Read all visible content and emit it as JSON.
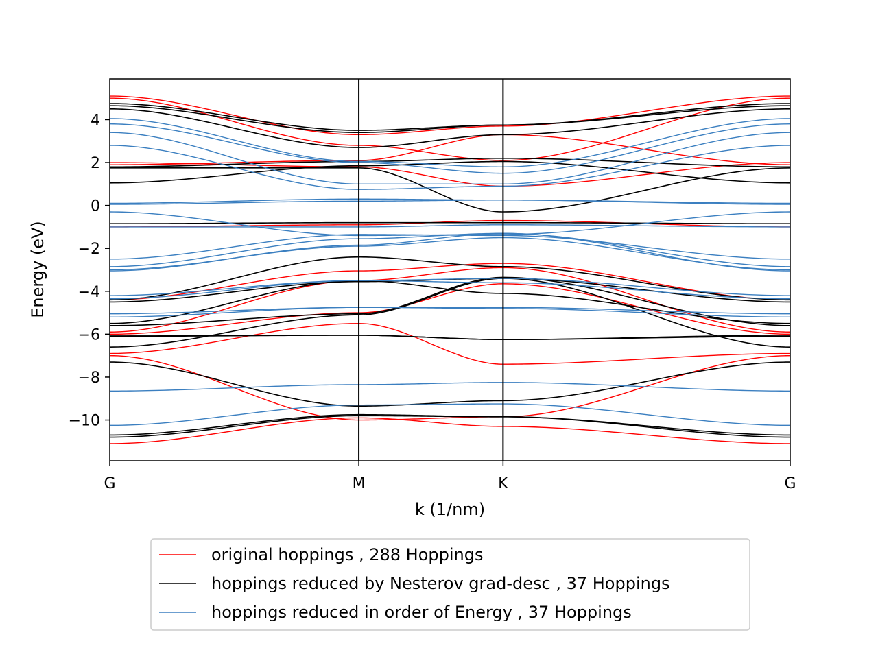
{
  "chart_data": {
    "type": "line",
    "title": "",
    "xlabel": "k (1/nm)",
    "ylabel": "Energy (eV)",
    "xlim": [
      0,
      1
    ],
    "ylim": [
      -11.9,
      5.9
    ],
    "k_ticks": [
      {
        "label": "G",
        "x": 0.0
      },
      {
        "label": "M",
        "x": 0.366
      },
      {
        "label": "K",
        "x": 0.578
      },
      {
        "label": "G",
        "x": 1.0
      }
    ],
    "y_ticks": [
      4,
      2,
      0,
      -2,
      -4,
      -6,
      -8,
      -10
    ],
    "y_tick_labels": [
      "4",
      "2",
      "0",
      "−2",
      "−4",
      "−6",
      "−8",
      "−10"
    ],
    "grid": false,
    "legend_position": "bottom-center, outside plot",
    "series": [
      {
        "name": "original hoppings , 288 Hoppings",
        "color": "#ff0000",
        "bands": [
          [
            5.1,
            3.3,
            3.7,
            5.1
          ],
          [
            5.0,
            2.8,
            2.1,
            5.0
          ],
          [
            2.0,
            1.8,
            0.9,
            2.0
          ],
          [
            1.9,
            2.1,
            3.3,
            1.9
          ],
          [
            -1.0,
            -0.9,
            -0.7,
            -1.0
          ],
          [
            -4.4,
            -3.05,
            -2.7,
            -4.4
          ],
          [
            -5.9,
            -3.5,
            -2.9,
            -5.9
          ],
          [
            -6.0,
            -5.0,
            -3.65,
            -6.0
          ],
          [
            -6.9,
            -5.5,
            -7.4,
            -6.9
          ],
          [
            -7.0,
            -10.0,
            -9.85,
            -7.0
          ],
          [
            -11.1,
            -9.9,
            -10.3,
            -11.1
          ]
        ]
      },
      {
        "name": "hoppings reduced by Nesterov grad-desc , 37 Hoppings",
        "color": "#000000",
        "bands": [
          [
            4.75,
            3.5,
            3.75,
            4.75
          ],
          [
            4.65,
            3.4,
            3.75,
            4.65
          ],
          [
            4.5,
            2.7,
            3.3,
            4.5
          ],
          [
            1.8,
            2.05,
            2.2,
            1.8
          ],
          [
            1.75,
            1.75,
            -0.3,
            1.75
          ],
          [
            1.05,
            1.85,
            2.05,
            1.05
          ],
          [
            -0.85,
            -0.8,
            -0.8,
            -0.85
          ],
          [
            -4.4,
            -2.4,
            -2.85,
            -4.4
          ],
          [
            -4.5,
            -3.55,
            -3.4,
            -4.5
          ],
          [
            -5.5,
            -3.5,
            -4.1,
            -5.5
          ],
          [
            -5.6,
            -5.05,
            -3.35,
            -5.6
          ],
          [
            -6.05,
            -6.05,
            -6.25,
            -6.05
          ],
          [
            -6.1,
            -6.05,
            -6.25,
            -6.1
          ],
          [
            -6.6,
            -5.1,
            -3.4,
            -6.6
          ],
          [
            -7.3,
            -9.35,
            -9.1,
            -7.3
          ],
          [
            -10.7,
            -9.75,
            -9.85,
            -10.7
          ],
          [
            -10.8,
            -9.8,
            -9.85,
            -10.8
          ]
        ]
      },
      {
        "name": "hoppings reduced in order of Energy , 37 Hoppings",
        "color": "#3b7fc0",
        "bands": [
          [
            4.05,
            2.05,
            1.8,
            4.05
          ],
          [
            3.8,
            2.0,
            1.5,
            3.8
          ],
          [
            3.4,
            1.0,
            1.0,
            3.4
          ],
          [
            2.8,
            0.75,
            0.9,
            2.8
          ],
          [
            0.1,
            0.3,
            0.25,
            0.1
          ],
          [
            0.05,
            0.2,
            0.25,
            0.05
          ],
          [
            -0.3,
            -1.4,
            -1.35,
            -0.3
          ],
          [
            -1.0,
            -1.0,
            -0.9,
            -1.0
          ],
          [
            -2.5,
            -1.35,
            -1.4,
            -2.5
          ],
          [
            -2.85,
            -1.55,
            -1.3,
            -2.85
          ],
          [
            -3.0,
            -1.9,
            -1.5,
            -3.0
          ],
          [
            -3.05,
            -1.85,
            -1.3,
            -3.05
          ],
          [
            -4.2,
            -3.5,
            -3.4,
            -4.2
          ],
          [
            -4.35,
            -3.5,
            -3.6,
            -4.35
          ],
          [
            -5.05,
            -4.75,
            -4.75,
            -5.05
          ],
          [
            -5.2,
            -4.75,
            -4.8,
            -5.2
          ],
          [
            -8.65,
            -8.35,
            -8.25,
            -8.65
          ],
          [
            -10.25,
            -9.3,
            -9.25,
            -10.25
          ]
        ]
      }
    ]
  }
}
